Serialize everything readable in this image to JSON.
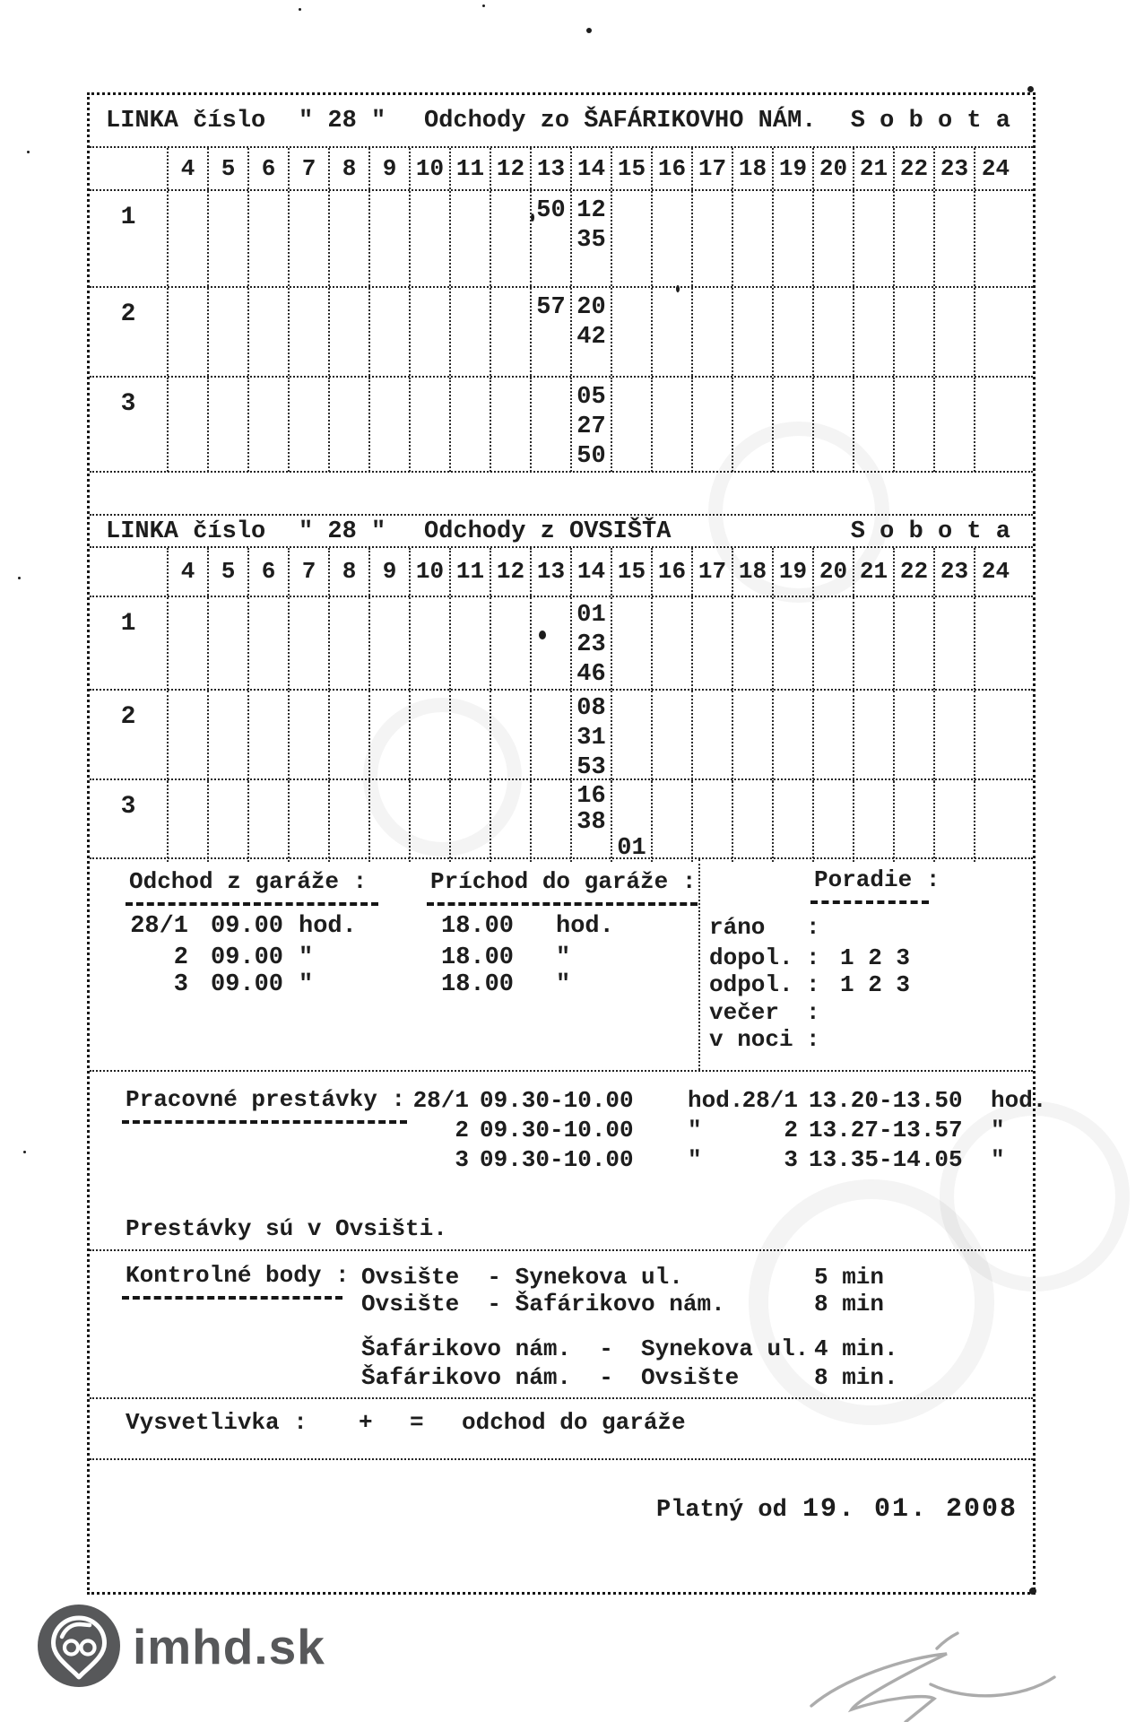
{
  "colors": {
    "ink": "#1d1d1d",
    "logo_gray": "#57585a",
    "signature_gray": "#979797"
  },
  "timetables": [
    {
      "title_prefix": "LINKA číslo",
      "line_number": "\" 28 \"",
      "direction": "Odchody zo ŠAFÁRIKOVHO NÁM.",
      "day": "S o b o t a",
      "hours": [
        "4",
        "5",
        "6",
        "7",
        "8",
        "9",
        "10",
        "11",
        "12",
        "13",
        "14",
        "15",
        "16",
        "17",
        "18",
        "19",
        "20",
        "21",
        "22",
        "23",
        "24"
      ],
      "rows": [
        {
          "label": "1",
          "cells": [
            {
              "hour": "13",
              "minutes": [
                "50"
              ]
            },
            {
              "hour": "14",
              "minutes": [
                "12",
                "35"
              ]
            }
          ]
        },
        {
          "label": "2",
          "cells": [
            {
              "hour": "13",
              "minutes": [
                "57"
              ]
            },
            {
              "hour": "14",
              "minutes": [
                "20",
                "42"
              ]
            }
          ]
        },
        {
          "label": "3",
          "cells": [
            {
              "hour": "14",
              "minutes": [
                "05",
                "27",
                "50"
              ]
            }
          ]
        }
      ]
    },
    {
      "title_prefix": "LINKA číslo",
      "line_number": "\" 28 \"",
      "direction": "Odchody z OVSIŠŤA",
      "day": "S o b o t a",
      "hours": [
        "4",
        "5",
        "6",
        "7",
        "8",
        "9",
        "10",
        "11",
        "12",
        "13",
        "14",
        "15",
        "16",
        "17",
        "18",
        "19",
        "20",
        "21",
        "22",
        "23",
        "24"
      ],
      "rows": [
        {
          "label": "1",
          "cells": [
            {
              "hour": "14",
              "minutes": [
                "01",
                "23",
                "46"
              ]
            }
          ]
        },
        {
          "label": "2",
          "cells": [
            {
              "hour": "14",
              "minutes": [
                "08",
                "31",
                "53"
              ]
            }
          ]
        },
        {
          "label": "3",
          "cells": [
            {
              "hour": "14",
              "minutes": [
                "16",
                "38"
              ]
            },
            {
              "hour": "15",
              "minutes": [
                "",
                "",
                "01"
              ]
            }
          ]
        }
      ]
    }
  ],
  "garage": {
    "departure_heading": "Odchod z garáže :",
    "arrival_heading": "Príchod do garáže :",
    "order_heading": "Poradie :",
    "rows": [
      {
        "bus": "28/1",
        "departure": "09.00",
        "departure_unit": "hod.",
        "arrival": "18.00",
        "arrival_unit": "hod."
      },
      {
        "bus": "2",
        "departure": "09.00",
        "departure_unit": "\"",
        "arrival": "18.00",
        "arrival_unit": "\""
      },
      {
        "bus": "3",
        "departure": "09.00",
        "departure_unit": "\"",
        "arrival": "18.00",
        "arrival_unit": "\""
      }
    ],
    "order_rows": [
      {
        "label": "ráno",
        "colon": ":",
        "value": ""
      },
      {
        "label": "dopol.",
        "colon": ":",
        "value": "1 2 3"
      },
      {
        "label": "odpol.",
        "colon": ":",
        "value": "1 2 3"
      },
      {
        "label": "večer",
        "colon": ":",
        "value": ""
      },
      {
        "label": "v noci",
        "colon": ":",
        "value": ""
      }
    ]
  },
  "work_breaks": {
    "heading": "Pracovné prestávky :",
    "morning": [
      {
        "bus": "28/1",
        "time": "09.30-10.00",
        "unit": "hod."
      },
      {
        "bus": "2",
        "time": "09.30-10.00",
        "unit": "\""
      },
      {
        "bus": "3",
        "time": "09.30-10.00",
        "unit": "\""
      }
    ],
    "afternoon": [
      {
        "bus": "28/1",
        "time": "13.20-13.50",
        "unit": "hod."
      },
      {
        "bus": "2",
        "time": "13.27-13.57",
        "unit": "\""
      },
      {
        "bus": "3",
        "time": "13.35-14.05",
        "unit": "\""
      }
    ],
    "note": "Prestávky sú v Ovsišti."
  },
  "control_points": {
    "heading": "Kontrolné body :",
    "rows": [
      {
        "route": "Ovsište  - Synekova ul.",
        "time": "5 min"
      },
      {
        "route": "Ovsište  - Šafárikovo nám.",
        "time": "8 min"
      },
      {
        "route": "Šafárikovo nám.  -  Synekova ul.",
        "time": "4 min."
      },
      {
        "route": "Šafárikovo nám.  -  Ovsište",
        "time": "8 min."
      }
    ]
  },
  "legend": {
    "heading": "Vysvetlivka :",
    "symbol": "+",
    "equals": "=",
    "meaning": "odchod do garáže"
  },
  "validity": {
    "label": "Platný od",
    "date": "19. 01. 2008"
  },
  "branding": {
    "logo_text": "imhd.sk"
  }
}
